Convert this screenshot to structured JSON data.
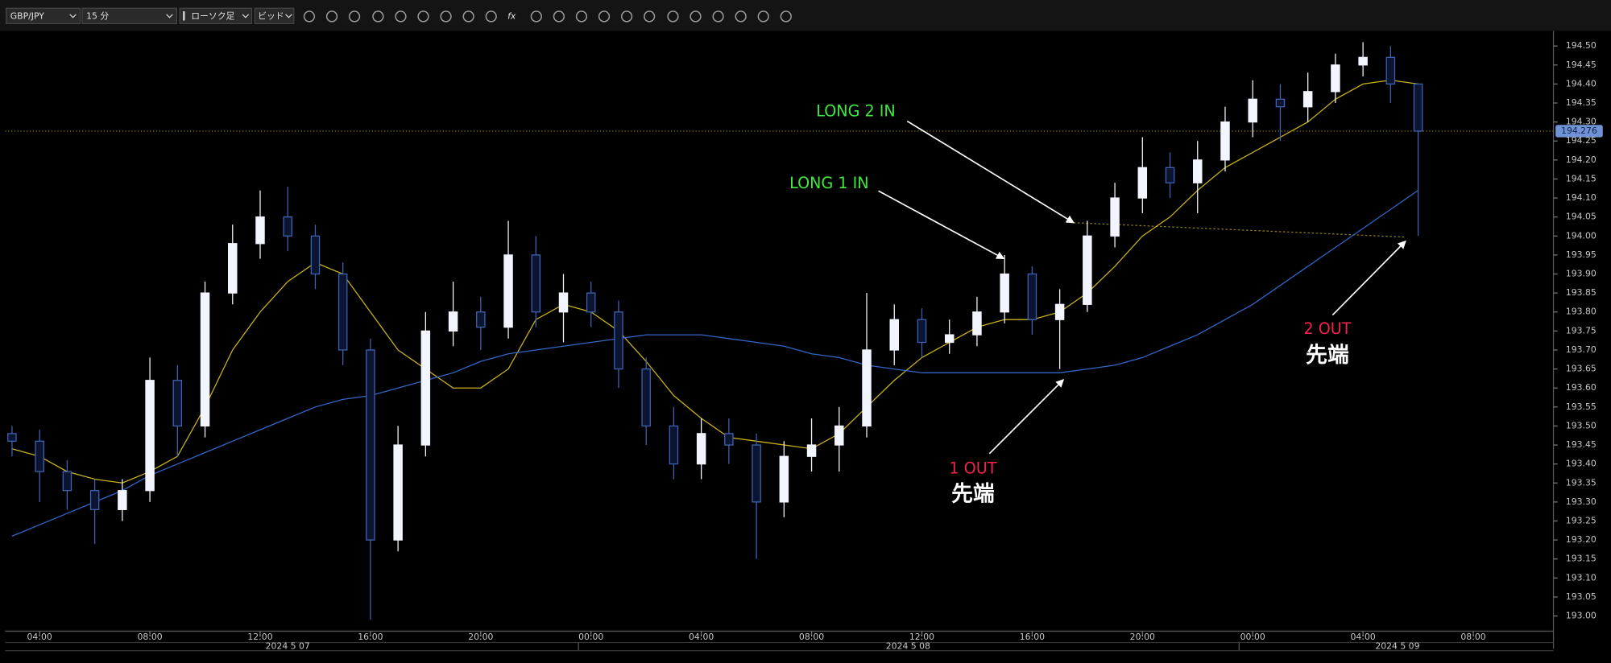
{
  "toolbar": {
    "symbol": "GBP/JPY",
    "interval": "15 分",
    "chart_type": "ローソク足",
    "price_type": "ビッド",
    "formula_icon": "fx"
  },
  "chart_data": {
    "type": "candlestick",
    "x": [
      "2024-05-07 03:00",
      "2024-05-07 04:00",
      "2024-05-07 05:00",
      "2024-05-07 06:00",
      "2024-05-07 07:00",
      "2024-05-07 08:00",
      "2024-05-07 09:00",
      "2024-05-07 10:00",
      "2024-05-07 11:00",
      "2024-05-07 12:00",
      "2024-05-07 13:00",
      "2024-05-07 14:00",
      "2024-05-07 15:00",
      "2024-05-07 16:00",
      "2024-05-07 17:00",
      "2024-05-07 18:00",
      "2024-05-07 19:00",
      "2024-05-07 20:00",
      "2024-05-07 21:00",
      "2024-05-07 22:00",
      "2024-05-07 23:00",
      "2024-05-08 00:00",
      "2024-05-08 01:00",
      "2024-05-08 02:00",
      "2024-05-08 03:00",
      "2024-05-08 04:00",
      "2024-05-08 05:00",
      "2024-05-08 06:00",
      "2024-05-08 07:00",
      "2024-05-08 08:00",
      "2024-05-08 09:00",
      "2024-05-08 10:00",
      "2024-05-08 11:00",
      "2024-05-08 12:00",
      "2024-05-08 13:00",
      "2024-05-08 14:00",
      "2024-05-08 15:00",
      "2024-05-08 16:00",
      "2024-05-08 17:00",
      "2024-05-08 18:00",
      "2024-05-08 19:00",
      "2024-05-08 20:00",
      "2024-05-08 21:00",
      "2024-05-08 22:00",
      "2024-05-08 23:00",
      "2024-05-09 00:00",
      "2024-05-09 01:00",
      "2024-05-09 02:00",
      "2024-05-09 03:00",
      "2024-05-09 04:00",
      "2024-05-09 05:00",
      "2024-05-09 06:00"
    ],
    "open": [
      193.48,
      193.46,
      193.38,
      193.33,
      193.28,
      193.33,
      193.62,
      193.5,
      193.85,
      193.98,
      194.05,
      194.0,
      193.9,
      193.7,
      193.2,
      193.45,
      193.75,
      193.8,
      193.76,
      193.95,
      193.8,
      193.85,
      193.8,
      193.65,
      193.5,
      193.4,
      193.48,
      193.45,
      193.3,
      193.42,
      193.45,
      193.5,
      193.7,
      193.78,
      193.72,
      193.74,
      193.8,
      193.9,
      193.78,
      193.82,
      194.0,
      194.1,
      194.18,
      194.14,
      194.2,
      194.3,
      194.36,
      194.34,
      194.38,
      194.45,
      194.47,
      194.4
    ],
    "high": [
      193.5,
      193.49,
      193.41,
      193.36,
      193.36,
      193.68,
      193.66,
      193.88,
      194.03,
      194.12,
      194.13,
      194.03,
      193.93,
      193.73,
      193.5,
      193.8,
      193.88,
      193.84,
      194.04,
      194.0,
      193.9,
      193.88,
      193.83,
      193.68,
      193.55,
      193.52,
      193.52,
      193.48,
      193.46,
      193.52,
      193.55,
      193.85,
      193.82,
      193.81,
      193.78,
      193.84,
      193.95,
      193.92,
      193.86,
      194.04,
      194.14,
      194.26,
      194.22,
      194.25,
      194.34,
      194.41,
      194.4,
      194.43,
      194.48,
      194.51,
      194.5,
      194.4
    ],
    "low": [
      193.42,
      193.3,
      193.28,
      193.19,
      193.25,
      193.3,
      193.42,
      193.47,
      193.82,
      193.94,
      193.96,
      193.86,
      193.66,
      192.99,
      193.17,
      193.42,
      193.71,
      193.7,
      193.73,
      193.76,
      193.72,
      193.76,
      193.6,
      193.45,
      193.36,
      193.36,
      193.4,
      193.15,
      193.26,
      193.38,
      193.38,
      193.47,
      193.66,
      193.68,
      193.69,
      193.71,
      193.77,
      193.74,
      193.65,
      193.8,
      193.97,
      194.06,
      194.1,
      194.06,
      194.17,
      194.26,
      194.25,
      194.3,
      194.35,
      194.42,
      194.35,
      194.0
    ],
    "close": [
      193.46,
      193.38,
      193.33,
      193.28,
      193.33,
      193.62,
      193.5,
      193.85,
      193.98,
      194.05,
      194.0,
      193.9,
      193.7,
      193.2,
      193.45,
      193.75,
      193.8,
      193.76,
      193.95,
      193.8,
      193.85,
      193.8,
      193.65,
      193.5,
      193.4,
      193.48,
      193.45,
      193.3,
      193.42,
      193.45,
      193.5,
      193.7,
      193.78,
      193.72,
      193.74,
      193.8,
      193.9,
      193.78,
      193.82,
      194.0,
      194.1,
      194.18,
      194.14,
      194.2,
      194.3,
      194.36,
      194.34,
      194.38,
      194.45,
      194.47,
      194.4,
      194.276
    ],
    "up_color": "#f2f4ff",
    "down_color": "#3f63b4",
    "overlays": [
      {
        "color": "#c9b21c",
        "values": [
          193.44,
          193.42,
          193.38,
          193.36,
          193.35,
          193.38,
          193.42,
          193.55,
          193.7,
          193.8,
          193.88,
          193.93,
          193.9,
          193.8,
          193.7,
          193.65,
          193.6,
          193.6,
          193.65,
          193.78,
          193.82,
          193.8,
          193.75,
          193.67,
          193.58,
          193.52,
          193.47,
          193.46,
          193.45,
          193.44,
          193.48,
          193.55,
          193.62,
          193.68,
          193.72,
          193.76,
          193.78,
          193.78,
          193.8,
          193.85,
          193.92,
          194.0,
          194.05,
          194.12,
          194.18,
          194.22,
          194.26,
          194.3,
          194.36,
          194.4,
          194.41,
          194.4
        ]
      },
      {
        "color": "#3366c8",
        "values": [
          193.21,
          193.24,
          193.27,
          193.3,
          193.33,
          193.37,
          193.4,
          193.43,
          193.46,
          193.49,
          193.52,
          193.55,
          193.57,
          193.58,
          193.6,
          193.62,
          193.64,
          193.67,
          193.69,
          193.7,
          193.71,
          193.72,
          193.73,
          193.74,
          193.74,
          193.74,
          193.73,
          193.72,
          193.71,
          193.69,
          193.68,
          193.66,
          193.65,
          193.64,
          193.64,
          193.64,
          193.64,
          193.64,
          193.64,
          193.65,
          193.66,
          193.68,
          193.71,
          193.74,
          193.78,
          193.82,
          193.87,
          193.92,
          193.97,
          194.02,
          194.07,
          194.12
        ]
      }
    ],
    "last_price": 194.276,
    "xlim": [
      "2024-05-07 02:45",
      "2024-05-09 10:50"
    ],
    "xticks": [
      {
        "value": "2024-05-07 04:00",
        "label": "04:00"
      },
      {
        "value": "2024-05-07 08:00",
        "label": "08:00"
      },
      {
        "value": "2024-05-07 12:00",
        "label": "12:00"
      },
      {
        "value": "2024-05-07 16:00",
        "label": "16:00"
      },
      {
        "value": "2024-05-07 20:00",
        "label": "20:00"
      },
      {
        "value": "2024-05-08 00:00",
        "label": "00:00"
      },
      {
        "value": "2024-05-08 04:00",
        "label": "04:00"
      },
      {
        "value": "2024-05-08 08:00",
        "label": "08:00"
      },
      {
        "value": "2024-05-08 12:00",
        "label": "12:00"
      },
      {
        "value": "2024-05-08 16:00",
        "label": "16:00"
      },
      {
        "value": "2024-05-08 20:00",
        "label": "20:00"
      },
      {
        "value": "2024-05-09 00:00",
        "label": "00:00"
      },
      {
        "value": "2024-05-09 04:00",
        "label": "04:00"
      },
      {
        "value": "2024-05-09 08:00",
        "label": "08:00"
      }
    ],
    "date_labels": [
      {
        "value": "2024-05-07 13:00",
        "label": "2024 5 07"
      },
      {
        "value": "2024-05-08 11:30",
        "label": "2024 5 08"
      },
      {
        "value": "2024-05-09 05:15",
        "label": "2024 5 09"
      }
    ],
    "ylim": [
      192.96,
      194.54
    ],
    "yticks": [
      {
        "value": 193.0,
        "label": "193.00"
      },
      193.05,
      {
        "value": 193.1,
        "label": "193.10"
      },
      193.15,
      {
        "value": 193.2,
        "label": "193.20"
      },
      193.25,
      {
        "value": 193.3,
        "label": "193.30"
      },
      193.35,
      {
        "value": 193.4,
        "label": "193.40"
      },
      193.45,
      {
        "value": 193.5,
        "label": "193.50"
      },
      193.55,
      {
        "value": 193.6,
        "label": "193.60"
      },
      193.65,
      {
        "value": 193.7,
        "label": "193.70"
      },
      193.75,
      {
        "value": 193.8,
        "label": "193.80"
      },
      193.85,
      {
        "value": 193.9,
        "label": "193.90"
      },
      193.95,
      {
        "value": 194.0,
        "label": "194.00"
      },
      194.05,
      {
        "value": 194.1,
        "label": "194.10"
      },
      194.15,
      {
        "value": 194.2,
        "label": "194.20"
      },
      194.25,
      {
        "value": 194.3,
        "label": "194.30"
      },
      194.35,
      {
        "value": 194.4,
        "label": "194.40"
      },
      194.45,
      {
        "value": 194.5,
        "label": "194.50"
      }
    ],
    "grid": false,
    "annotations": [
      {
        "text": "LONG 2 IN",
        "color": "#3ee83e"
      },
      {
        "text": "LONG 1 IN",
        "color": "#3ee83e"
      },
      {
        "text": "1 OUT",
        "color": "#f0234a"
      },
      {
        "text": "先端",
        "color": "#ffffff"
      },
      {
        "text": "2 OUT",
        "color": "#f0234a"
      },
      {
        "text": "先端",
        "color": "#ffffff"
      }
    ]
  }
}
